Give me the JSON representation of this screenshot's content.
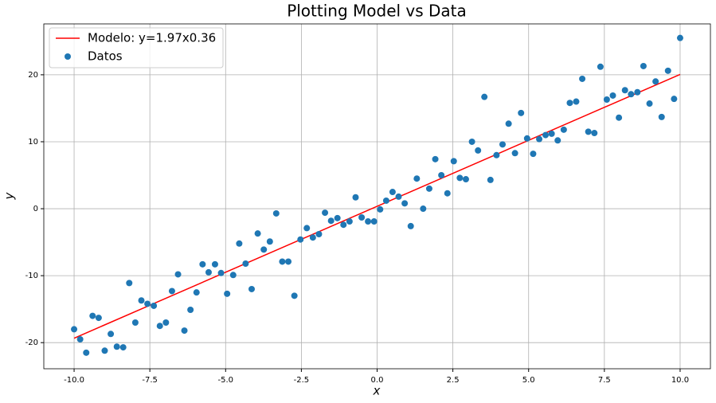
{
  "chart_data": {
    "type": "scatter",
    "title": "Plotting Model vs Data",
    "xlabel": "x",
    "ylabel": "y",
    "xlim": [
      -11,
      11
    ],
    "ylim": [
      -23.9,
      27.6
    ],
    "xticks": [
      {
        "value": -10,
        "label": "-10.0"
      },
      -7.5,
      {
        "value": -5,
        "label": "-5.0"
      },
      -2.5,
      {
        "value": 0,
        "label": "0.0"
      },
      2.5,
      {
        "value": 5,
        "label": "5.0"
      },
      7.5,
      {
        "value": 10,
        "label": "10.0"
      }
    ],
    "yticks": [
      -20,
      -10,
      0,
      10,
      20
    ],
    "grid": true,
    "legend": "upper left",
    "series": [
      {
        "name": "Modelo: y=1.97x0.36",
        "type": "line",
        "color": "#ff0000",
        "x": [
          -10,
          10
        ],
        "values": [
          -19.34,
          20.06
        ]
      },
      {
        "name": "Datos",
        "type": "scatter",
        "color": "#1f77b4",
        "x": [
          -10.0,
          -9.8,
          -9.6,
          -9.39,
          -9.19,
          -8.99,
          -8.79,
          -8.59,
          -8.38,
          -8.18,
          -7.98,
          -7.78,
          -7.58,
          -7.37,
          -7.17,
          -6.97,
          -6.77,
          -6.57,
          -6.36,
          -6.16,
          -5.96,
          -5.76,
          -5.56,
          -5.35,
          -5.15,
          -4.95,
          -4.75,
          -4.55,
          -4.34,
          -4.14,
          -3.94,
          -3.74,
          -3.54,
          -3.33,
          -3.13,
          -2.93,
          -2.73,
          -2.53,
          -2.32,
          -2.12,
          -1.92,
          -1.72,
          -1.52,
          -1.31,
          -1.11,
          -0.91,
          -0.71,
          -0.51,
          -0.3,
          -0.1,
          0.1,
          0.3,
          0.51,
          0.71,
          0.91,
          1.11,
          1.31,
          1.52,
          1.72,
          1.92,
          2.12,
          2.32,
          2.53,
          2.73,
          2.93,
          3.13,
          3.33,
          3.54,
          3.74,
          3.94,
          4.14,
          4.34,
          4.55,
          4.75,
          4.95,
          5.15,
          5.35,
          5.56,
          5.76,
          5.96,
          6.16,
          6.36,
          6.57,
          6.77,
          6.97,
          7.17,
          7.37,
          7.58,
          7.78,
          7.98,
          8.18,
          8.38,
          8.59,
          8.79,
          8.99,
          9.19,
          9.39,
          9.6,
          9.8,
          10.0
        ],
        "values": [
          -18.0,
          -19.5,
          -21.5,
          -16.0,
          -16.3,
          -21.2,
          -18.7,
          -20.6,
          -20.7,
          -11.1,
          -17.0,
          -13.7,
          -14.2,
          -14.5,
          -17.5,
          -17.0,
          -12.3,
          -9.8,
          -18.2,
          -15.1,
          -12.5,
          -8.3,
          -9.5,
          -8.3,
          -9.6,
          -12.7,
          -9.9,
          -5.2,
          -8.2,
          -12.0,
          -3.7,
          -6.1,
          -4.9,
          -0.7,
          -7.9,
          -7.9,
          -13.0,
          -4.6,
          -2.9,
          -4.3,
          -3.8,
          -0.6,
          -1.8,
          -1.4,
          -2.4,
          -1.9,
          1.7,
          -1.3,
          -1.9,
          -1.9,
          -0.1,
          1.2,
          2.5,
          1.8,
          0.8,
          -2.6,
          4.5,
          0.0,
          3.0,
          7.4,
          5.0,
          2.3,
          7.1,
          4.6,
          4.4,
          10.0,
          8.7,
          16.7,
          4.3,
          8.0,
          9.6,
          12.7,
          8.3,
          14.3,
          10.5,
          8.2,
          10.4,
          11.0,
          11.2,
          10.2,
          11.8,
          15.8,
          16.0,
          19.4,
          11.5,
          11.3,
          21.2,
          16.3,
          16.9,
          13.6,
          17.7,
          17.1,
          17.4,
          21.3,
          15.7,
          19.0,
          13.7,
          20.6,
          16.4,
          25.5
        ]
      }
    ]
  }
}
